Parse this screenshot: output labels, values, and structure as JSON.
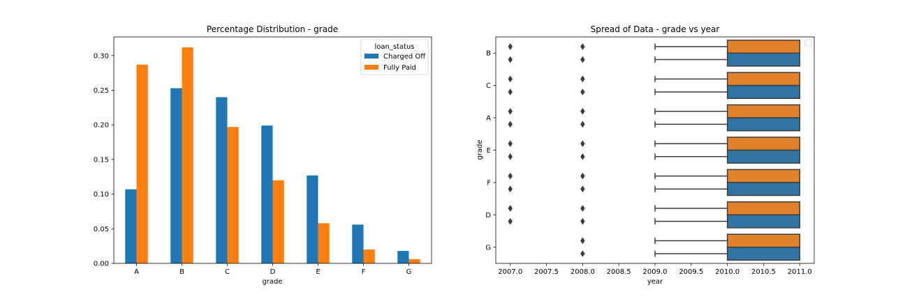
{
  "chart_data": [
    {
      "type": "bar",
      "title": "Percentage Distribution - grade",
      "xlabel": "grade",
      "ylabel": "",
      "categories": [
        "A",
        "B",
        "C",
        "D",
        "E",
        "F",
        "G"
      ],
      "series": [
        {
          "name": "Charged Off",
          "color": "#1f77b4",
          "values": [
            0.107,
            0.253,
            0.24,
            0.199,
            0.127,
            0.056,
            0.018
          ]
        },
        {
          "name": "Fully Paid",
          "color": "#ff7f0e",
          "values": [
            0.287,
            0.312,
            0.197,
            0.12,
            0.058,
            0.02,
            0.006
          ]
        }
      ],
      "ylim": [
        0,
        0.327
      ],
      "yticks": [
        0.0,
        0.05,
        0.1,
        0.15,
        0.2,
        0.25,
        0.3
      ],
      "ytick_labels": [
        "0.00",
        "0.05",
        "0.10",
        "0.15",
        "0.20",
        "0.25",
        "0.30"
      ],
      "legend": {
        "title": "loan_status",
        "placement": "upper right"
      },
      "grid": false
    },
    {
      "type": "boxplot",
      "orientation": "horizontal",
      "title": "Spread of Data - grade vs year",
      "xlabel": "year",
      "ylabel": "grade",
      "categories": [
        "B",
        "C",
        "A",
        "E",
        "F",
        "D",
        "G"
      ],
      "xlim": [
        2006.8,
        2011.2
      ],
      "xticks": [
        2007.0,
        2007.5,
        2008.0,
        2008.5,
        2009.0,
        2009.5,
        2010.0,
        2010.5,
        2011.0
      ],
      "xtick_labels": [
        "2007.0",
        "2007.5",
        "2008.0",
        "2008.5",
        "2009.0",
        "2009.5",
        "2010.0",
        "2010.5",
        "2011.0"
      ],
      "hue_colors": [
        "#e1812c",
        "#3274a1"
      ],
      "box_stats": {
        "whisker_low": 2009.0,
        "q1": 2010.0,
        "median": 2010.0,
        "q3": 2011.0,
        "whisker_high": 2011.0
      },
      "groups": [
        {
          "category": "B",
          "boxes": [
            {
              "hue": 0,
              "outliers": [
                2007.0,
                2008.0
              ]
            },
            {
              "hue": 1,
              "outliers": [
                2007.0,
                2008.0
              ]
            }
          ]
        },
        {
          "category": "C",
          "boxes": [
            {
              "hue": 0,
              "outliers": [
                2007.0,
                2008.0
              ]
            },
            {
              "hue": 1,
              "outliers": [
                2007.0,
                2008.0
              ]
            }
          ]
        },
        {
          "category": "A",
          "boxes": [
            {
              "hue": 0,
              "outliers": [
                2007.0,
                2008.0
              ]
            },
            {
              "hue": 1,
              "outliers": [
                2007.0,
                2008.0
              ]
            }
          ]
        },
        {
          "category": "E",
          "boxes": [
            {
              "hue": 0,
              "outliers": [
                2007.0,
                2008.0
              ]
            },
            {
              "hue": 1,
              "outliers": [
                2007.0,
                2008.0
              ]
            }
          ]
        },
        {
          "category": "F",
          "boxes": [
            {
              "hue": 0,
              "outliers": [
                2007.0,
                2008.0
              ]
            },
            {
              "hue": 1,
              "outliers": [
                2007.0,
                2008.0
              ]
            }
          ]
        },
        {
          "category": "D",
          "boxes": [
            {
              "hue": 0,
              "outliers": [
                2007.0,
                2008.0
              ]
            },
            {
              "hue": 1,
              "outliers": [
                2007.0,
                2008.0
              ]
            }
          ]
        },
        {
          "category": "G",
          "boxes": [
            {
              "hue": 0,
              "outliers": [
                2008.0
              ]
            },
            {
              "hue": 1,
              "outliers": [
                2008.0
              ]
            }
          ]
        }
      ],
      "legend": {
        "placement": "upper right",
        "entries": []
      },
      "grid": false
    }
  ]
}
